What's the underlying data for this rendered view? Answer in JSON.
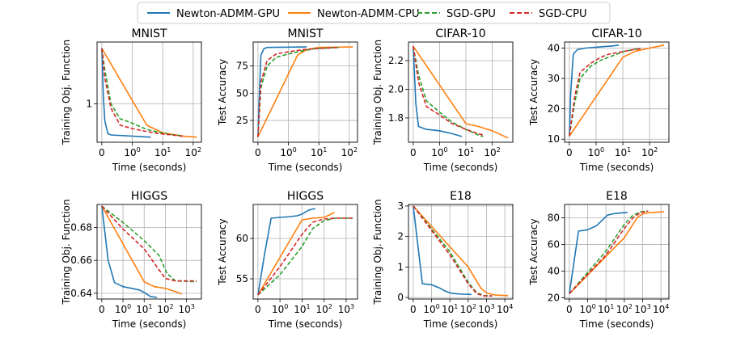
{
  "legend": [
    {
      "label": "Newton-ADMM-GPU",
      "color": "#1f77b4",
      "dash": false
    },
    {
      "label": "Newton-ADMM-CPU",
      "color": "#ff7f0e",
      "dash": false
    },
    {
      "label": "SGD-GPU",
      "color": "#2ca02c",
      "dash": true
    },
    {
      "label": "SGD-CPU",
      "color": "#d62728",
      "dash": true
    }
  ],
  "chart_data": [
    {
      "type": "line",
      "title": "MNIST",
      "xlabel": "Time (seconds)",
      "ylabel": "Training Obj. Function",
      "xscale": "symlog",
      "ylim": [
        0.1,
        2.45
      ],
      "yticks": [
        {
          "v": 1,
          "label": "1"
        }
      ],
      "xticks": [
        {
          "v": 0,
          "label": "0"
        },
        {
          "v": 1,
          "label": "10^0"
        },
        {
          "v": 10,
          "label": "10^1"
        },
        {
          "v": 100,
          "label": "10^2"
        }
      ],
      "series": [
        {
          "name": "Newton-ADMM-GPU",
          "x": [
            0,
            0.05,
            0.1,
            0.2,
            0.3,
            4
          ],
          "y": [
            2.3,
            1.2,
            0.6,
            0.3,
            0.27,
            0.22
          ]
        },
        {
          "name": "Newton-ADMM-CPU",
          "x": [
            0,
            3,
            10,
            50,
            130
          ],
          "y": [
            2.3,
            0.5,
            0.32,
            0.24,
            0.22
          ]
        },
        {
          "name": "SGD-GPU",
          "x": [
            0,
            0.1,
            0.3,
            0.6,
            1,
            3,
            8,
            20,
            45
          ],
          "y": [
            2.3,
            1.8,
            1.0,
            0.65,
            0.55,
            0.4,
            0.33,
            0.28,
            0.25
          ]
        },
        {
          "name": "SGD-CPU",
          "x": [
            0,
            0.1,
            0.3,
            0.6,
            1,
            3,
            8,
            20,
            45
          ],
          "y": [
            2.3,
            1.6,
            0.9,
            0.5,
            0.42,
            0.35,
            0.3,
            0.27,
            0.24
          ]
        }
      ]
    },
    {
      "type": "line",
      "title": "MNIST",
      "xlabel": "Time (seconds)",
      "ylabel": "Test Accuracy",
      "xscale": "symlog",
      "ylim": [
        5,
        97
      ],
      "yticks": [
        {
          "v": 25,
          "label": "25"
        },
        {
          "v": 50,
          "label": "50"
        },
        {
          "v": 75,
          "label": "75"
        }
      ],
      "xticks": [
        {
          "v": 0,
          "label": "0"
        },
        {
          "v": 1,
          "label": "10^0"
        },
        {
          "v": 10,
          "label": "10^1"
        },
        {
          "v": 100,
          "label": "10^2"
        }
      ],
      "series": [
        {
          "name": "Newton-ADMM-GPU",
          "x": [
            0,
            0.05,
            0.1,
            0.2,
            0.3,
            4
          ],
          "y": [
            10,
            50,
            85,
            91,
            92,
            92.5
          ]
        },
        {
          "name": "Newton-ADMM-CPU",
          "x": [
            0,
            2,
            4,
            10,
            130
          ],
          "y": [
            10,
            85,
            90,
            92,
            92.5
          ]
        },
        {
          "name": "SGD-GPU",
          "x": [
            0,
            0.1,
            0.3,
            0.6,
            1,
            3,
            8,
            20,
            45
          ],
          "y": [
            10,
            55,
            75,
            83,
            86,
            89,
            91,
            91.5,
            92
          ]
        },
        {
          "name": "SGD-CPU",
          "x": [
            0,
            0.1,
            0.3,
            0.6,
            1,
            3,
            8,
            20,
            45
          ],
          "y": [
            10,
            60,
            80,
            86,
            88,
            90,
            91,
            91.5,
            92
          ]
        }
      ]
    },
    {
      "type": "line",
      "title": "CIFAR-10",
      "xlabel": "Time (seconds)",
      "ylabel": "Training Obj. Function",
      "xscale": "symlog",
      "ylim": [
        1.63,
        2.33
      ],
      "yticks": [
        {
          "v": 1.8,
          "label": "1.8"
        },
        {
          "v": 2.0,
          "label": "2.0"
        },
        {
          "v": 2.2,
          "label": "2.2"
        }
      ],
      "xticks": [
        {
          "v": 0,
          "label": "0"
        },
        {
          "v": 1,
          "label": "10^0"
        },
        {
          "v": 10,
          "label": "10^1"
        },
        {
          "v": 100,
          "label": "10^2"
        }
      ],
      "series": [
        {
          "name": "Newton-ADMM-GPU",
          "x": [
            0,
            0.1,
            0.2,
            0.5,
            1,
            3,
            7
          ],
          "y": [
            2.3,
            1.9,
            1.74,
            1.72,
            1.71,
            1.69,
            1.67
          ]
        },
        {
          "name": "Newton-ADMM-CPU",
          "x": [
            0,
            10,
            30,
            100,
            400
          ],
          "y": [
            2.3,
            1.76,
            1.74,
            1.71,
            1.66
          ]
        },
        {
          "name": "SGD-GPU",
          "x": [
            0,
            0.2,
            0.5,
            1,
            3,
            10,
            30,
            45
          ],
          "y": [
            2.3,
            2.1,
            1.92,
            1.84,
            1.77,
            1.72,
            1.68,
            1.67
          ]
        },
        {
          "name": "SGD-CPU",
          "x": [
            0,
            0.2,
            0.5,
            1,
            3,
            10,
            30,
            45
          ],
          "y": [
            2.3,
            2.05,
            1.88,
            1.82,
            1.76,
            1.72,
            1.69,
            1.68
          ]
        }
      ]
    },
    {
      "type": "line",
      "title": "CIFAR-10",
      "xlabel": "Time (seconds)",
      "ylabel": "Test Accuracy",
      "xscale": "symlog",
      "ylim": [
        9,
        42
      ],
      "yticks": [
        {
          "v": 10,
          "label": "10"
        },
        {
          "v": 20,
          "label": "20"
        },
        {
          "v": 30,
          "label": "30"
        },
        {
          "v": 40,
          "label": "40"
        }
      ],
      "xticks": [
        {
          "v": 0,
          "label": "0"
        },
        {
          "v": 1,
          "label": "10^0"
        },
        {
          "v": 10,
          "label": "10^1"
        },
        {
          "v": 100,
          "label": "10^2"
        }
      ],
      "series": [
        {
          "name": "Newton-ADMM-GPU",
          "x": [
            0,
            0.05,
            0.15,
            0.3,
            0.6,
            1,
            2,
            4,
            7
          ],
          "y": [
            11,
            25,
            38,
            39.5,
            40,
            40.3,
            40.5,
            40.7,
            41
          ]
        },
        {
          "name": "Newton-ADMM-CPU",
          "x": [
            0,
            10,
            30,
            100,
            350
          ],
          "y": [
            11,
            37,
            39,
            40,
            41
          ]
        },
        {
          "name": "SGD-GPU",
          "x": [
            0,
            0.2,
            0.4,
            0.8,
            1.5,
            3,
            6,
            12,
            25,
            45
          ],
          "y": [
            11,
            22,
            30,
            34,
            36,
            37,
            38,
            39,
            39.5,
            40
          ]
        },
        {
          "name": "SGD-CPU",
          "x": [
            0,
            0.2,
            0.4,
            0.8,
            1.5,
            3,
            6,
            12,
            25,
            45
          ],
          "y": [
            11,
            24,
            32,
            35,
            37,
            38,
            38.5,
            39,
            39.5,
            39.8
          ]
        }
      ]
    },
    {
      "type": "line",
      "title": "HIGGS",
      "xlabel": "Time (seconds)",
      "ylabel": "Training Obj. Function",
      "xscale": "symlog",
      "ylim": [
        0.6365,
        0.694
      ],
      "yticks": [
        {
          "v": 0.64,
          "label": "0.64"
        },
        {
          "v": 0.66,
          "label": "0.66"
        },
        {
          "v": 0.68,
          "label": "0.68"
        }
      ],
      "xticks": [
        {
          "v": 0,
          "label": "0"
        },
        {
          "v": 1,
          "label": "10^0"
        },
        {
          "v": 10,
          "label": "10^1"
        },
        {
          "v": 100,
          "label": "10^2"
        },
        {
          "v": 1000,
          "label": "10^3"
        }
      ],
      "series": [
        {
          "name": "Newton-ADMM-GPU",
          "x": [
            0,
            0.3,
            0.6,
            1,
            3,
            6,
            10,
            20,
            40
          ],
          "y": [
            0.693,
            0.66,
            0.6465,
            0.644,
            0.6428,
            0.642,
            0.6405,
            0.638,
            0.6375
          ]
        },
        {
          "name": "Newton-ADMM-CPU",
          "x": [
            0,
            10,
            30,
            100,
            300,
            600
          ],
          "y": [
            0.693,
            0.647,
            0.644,
            0.643,
            0.641,
            0.6395
          ]
        },
        {
          "name": "SGD-GPU",
          "x": [
            0,
            1,
            10,
            50,
            120,
            300,
            3000
          ],
          "y": [
            0.693,
            0.683,
            0.672,
            0.663,
            0.652,
            0.6475,
            0.647
          ]
        },
        {
          "name": "SGD-CPU",
          "x": [
            0,
            1,
            10,
            40,
            100,
            300,
            3000
          ],
          "y": [
            0.693,
            0.679,
            0.667,
            0.656,
            0.649,
            0.6475,
            0.6475
          ]
        }
      ]
    },
    {
      "type": "line",
      "title": "HIGGS",
      "xlabel": "Time (seconds)",
      "ylabel": "Test Accuracy",
      "xscale": "symlog",
      "ylim": [
        52.5,
        64.2
      ],
      "yticks": [
        {
          "v": 55,
          "label": "55"
        },
        {
          "v": 60,
          "label": "60"
        }
      ],
      "xticks": [
        {
          "v": 0,
          "label": "0"
        },
        {
          "v": 1,
          "label": "10^0"
        },
        {
          "v": 10,
          "label": "10^1"
        },
        {
          "v": 100,
          "label": "10^2"
        },
        {
          "v": 1000,
          "label": "10^3"
        }
      ],
      "series": [
        {
          "name": "Newton-ADMM-GPU",
          "x": [
            0,
            0.3,
            0.6,
            1,
            3,
            6,
            10,
            20,
            40
          ],
          "y": [
            53,
            58,
            62.5,
            62.6,
            62.7,
            62.8,
            63,
            63.5,
            63.7
          ]
        },
        {
          "name": "Newton-ADMM-CPU",
          "x": [
            0,
            10,
            30,
            100,
            300
          ],
          "y": [
            53,
            62.3,
            62.5,
            62.6,
            63.2
          ]
        },
        {
          "name": "SGD-GPU",
          "x": [
            0,
            1,
            10,
            30,
            100,
            300,
            2000
          ],
          "y": [
            53,
            55.5,
            59,
            61.2,
            62.2,
            62.5,
            62.5
          ]
        },
        {
          "name": "SGD-CPU",
          "x": [
            0,
            1,
            10,
            30,
            100,
            300,
            2000
          ],
          "y": [
            53,
            56.5,
            60.5,
            62,
            62.4,
            62.5,
            62.5
          ]
        }
      ]
    },
    {
      "type": "line",
      "title": "E18",
      "xlabel": "Time (seconds)",
      "ylabel": "Training Obj. Function",
      "xscale": "symlog",
      "ylim": [
        -0.05,
        3.05
      ],
      "yticks": [
        {
          "v": 0,
          "label": "0"
        },
        {
          "v": 1,
          "label": "1"
        },
        {
          "v": 2,
          "label": "2"
        },
        {
          "v": 3,
          "label": "3"
        }
      ],
      "xticks": [
        {
          "v": 0,
          "label": "0"
        },
        {
          "v": 1,
          "label": "10^0"
        },
        {
          "v": 10,
          "label": "10^1"
        },
        {
          "v": 100,
          "label": "10^2"
        },
        {
          "v": 1000,
          "label": "10^3"
        },
        {
          "v": 10000,
          "label": "10^4"
        }
      ],
      "series": [
        {
          "name": "Newton-ADMM-GPU",
          "x": [
            0,
            0.5,
            1,
            3,
            6,
            12,
            25,
            50,
            150
          ],
          "y": [
            3,
            0.45,
            0.42,
            0.3,
            0.2,
            0.14,
            0.12,
            0.11,
            0.1
          ]
        },
        {
          "name": "Newton-ADMM-CPU",
          "x": [
            0,
            100,
            500,
            1000,
            3000,
            15000
          ],
          "y": [
            3,
            1.0,
            0.3,
            0.15,
            0.08,
            0.06
          ]
        },
        {
          "name": "SGD-GPU",
          "x": [
            0,
            10,
            100,
            300,
            800,
            2000
          ],
          "y": [
            3,
            1.5,
            0.5,
            0.15,
            0.06,
            0.05
          ]
        },
        {
          "name": "SGD-CPU",
          "x": [
            0,
            10,
            100,
            300,
            800,
            2000
          ],
          "y": [
            3,
            1.4,
            0.45,
            0.12,
            0.05,
            0.05
          ]
        }
      ]
    },
    {
      "type": "line",
      "title": "E18",
      "xlabel": "Time (seconds)",
      "ylabel": "Test Accuracy",
      "xscale": "symlog",
      "ylim": [
        19,
        90
      ],
      "yticks": [
        {
          "v": 20,
          "label": "20"
        },
        {
          "v": 40,
          "label": "40"
        },
        {
          "v": 60,
          "label": "60"
        },
        {
          "v": 80,
          "label": "80"
        }
      ],
      "xticks": [
        {
          "v": 0,
          "label": "0"
        },
        {
          "v": 1,
          "label": "10^0"
        },
        {
          "v": 10,
          "label": "10^1"
        },
        {
          "v": 100,
          "label": "10^2"
        },
        {
          "v": 1000,
          "label": "10^3"
        },
        {
          "v": 10000,
          "label": "10^4"
        }
      ],
      "series": [
        {
          "name": "Newton-ADMM-GPU",
          "x": [
            0,
            0.5,
            1,
            3,
            6,
            12,
            25,
            50,
            150
          ],
          "y": [
            23,
            70,
            71,
            74,
            78,
            82,
            83,
            83.5,
            84
          ]
        },
        {
          "name": "Newton-ADMM-CPU",
          "x": [
            0,
            100,
            500,
            1000,
            3000,
            15000
          ],
          "y": [
            23,
            65,
            80,
            83,
            84,
            84.5
          ]
        },
        {
          "name": "SGD-GPU",
          "x": [
            0,
            10,
            100,
            300,
            800,
            2000
          ],
          "y": [
            23,
            55,
            75,
            82,
            84.5,
            85
          ]
        },
        {
          "name": "SGD-CPU",
          "x": [
            0,
            10,
            100,
            300,
            800,
            2000
          ],
          "y": [
            23,
            52,
            72,
            80,
            84,
            85
          ]
        }
      ]
    }
  ]
}
